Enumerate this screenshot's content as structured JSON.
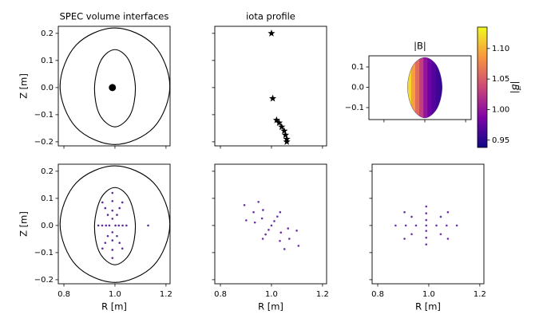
{
  "chart_data": [
    {
      "type": "poincare",
      "title": "SPEC volume interfaces",
      "ylabel": "Z [m]",
      "xlim": [
        0.778,
        1.216
      ],
      "ylim": [
        -0.215,
        0.226
      ],
      "xticks": [
        0.8,
        1.0,
        1.2
      ],
      "show_xtick_labels": false,
      "yticks": [
        0.2,
        0.1,
        {
          "value": 0,
          "label": "0.0"
        },
        {
          "value": -0.1,
          "label": "−0.1"
        },
        {
          "value": -0.2,
          "label": "−0.2"
        }
      ],
      "show_ytick_labels": true,
      "interfaces": [
        {
          "x": [
            1.0,
            1.152,
            1.215,
            1.152,
            1.0,
            0.848,
            0.785,
            0.848
          ],
          "y": [
            0.22,
            0.157,
            0.005,
            -0.147,
            -0.21,
            -0.147,
            0.005,
            0.157
          ]
        },
        {
          "x": [
            1.0,
            1.055,
            1.08,
            1.06,
            1.0,
            0.94,
            0.92,
            0.945
          ],
          "y": [
            0.14,
            0.1,
            0.0,
            -0.1,
            -0.145,
            -0.1,
            0.0,
            0.1
          ]
        }
      ],
      "series": [
        {
          "color": "#000000",
          "marker_size": 4.5,
          "x": [
            0.99
          ],
          "y": [
            0.0
          ]
        }
      ]
    },
    {
      "type": "scatter",
      "title": "iota profile",
      "xlim": [
        0.778,
        1.216
      ],
      "ylim": [
        -0.215,
        0.226
      ],
      "xticks": [
        0.8,
        1.0,
        1.2
      ],
      "show_xtick_labels": false,
      "yticks": [
        0.2,
        0.1,
        0,
        -0.1,
        -0.2
      ],
      "show_ytick_labels": false,
      "color": "#000000",
      "x": [
        1.0,
        1.005,
        1.02,
        1.03,
        1.04,
        1.05,
        1.055,
        1.06,
        1.06
      ],
      "y": [
        0.2,
        -0.04,
        -0.12,
        -0.13,
        -0.145,
        -0.16,
        -0.175,
        -0.19,
        -0.2
      ]
    },
    {
      "type": "surface",
      "title": "|B|",
      "xlim": [
        0.726,
        1.227
      ],
      "ylim": [
        -0.159,
        0.155
      ],
      "xticks": [
        0.8,
        1.0,
        1.2
      ],
      "show_xtick_labels": false,
      "yticks": [
        0.1,
        {
          "value": 0,
          "label": "0.0"
        },
        {
          "value": -0.1,
          "label": "−0.1"
        }
      ],
      "show_ytick_labels": true,
      "boundary": {
        "x": [
          1.0,
          1.06,
          1.085,
          1.06,
          1.0,
          0.94,
          0.915,
          0.94
        ],
        "y": [
          0.147,
          0.104,
          0.0,
          -0.104,
          -0.151,
          -0.104,
          0.0,
          0.104
        ]
      },
      "R": [
        0.925,
        0.945,
        0.965,
        0.985,
        1.005,
        1.025,
        1.045,
        1.065,
        1.085
      ],
      "B": [
        1.12,
        1.09,
        1.06,
        1.03,
        1.0,
        0.98,
        0.97,
        0.96,
        0.955
      ],
      "colorbar": {
        "label": "|B⃗|",
        "lim": [
          0.938,
          1.135
        ],
        "ticks": [
          {
            "value": 1.1,
            "label": "1.10"
          },
          1.05,
          {
            "value": 1,
            "label": "1.00"
          },
          0.95
        ]
      }
    },
    {
      "type": "poincare",
      "ylabel": "Z [m]",
      "xlabel": "R [m]",
      "xlim": [
        0.778,
        1.216
      ],
      "ylim": [
        -0.215,
        0.226
      ],
      "xticks": [
        0.8,
        {
          "value": 1,
          "label": "1.0"
        },
        1.2
      ],
      "show_xtick_labels": true,
      "yticks": [
        0.2,
        0.1,
        {
          "value": 0,
          "label": "0.0"
        },
        {
          "value": -0.1,
          "label": "−0.1"
        },
        {
          "value": -0.2,
          "label": "−0.2"
        }
      ],
      "show_ytick_labels": true,
      "interfaces": [
        {
          "x": [
            1.0,
            1.152,
            1.215,
            1.152,
            1.0,
            0.848,
            0.785,
            0.848
          ],
          "y": [
            0.22,
            0.157,
            0.005,
            -0.147,
            -0.21,
            -0.147,
            0.005,
            0.157
          ]
        },
        {
          "x": [
            1.0,
            1.055,
            1.08,
            1.06,
            1.0,
            0.94,
            0.92,
            0.945
          ],
          "y": [
            0.14,
            0.1,
            0.0,
            -0.1,
            -0.145,
            -0.1,
            0.0,
            0.1
          ]
        }
      ],
      "series": [
        {
          "color": "#5b2c9a",
          "marker_size": 1.3,
          "x": [
            1.045,
            1.029,
            0.99,
            0.951,
            0.935,
            0.951,
            0.99,
            1.029,
            1.03,
            1.018,
            0.99,
            0.962,
            0.95,
            0.962,
            0.99,
            1.018,
            1.015,
            1.008,
            0.99,
            0.972,
            0.965,
            0.972,
            0.99,
            1.008,
            1.002,
            0.99,
            0.978,
            0.99,
            1.13
          ],
          "y": [
            0,
            0.085,
            0.12,
            0.085,
            0,
            -0.085,
            -0.12,
            -0.085,
            0,
            0.064,
            0.09,
            0.064,
            0,
            -0.064,
            -0.09,
            -0.064,
            0,
            0.039,
            0.055,
            0.039,
            0,
            -0.039,
            -0.055,
            -0.039,
            0,
            0.025,
            0,
            -0.025,
            0
          ]
        }
      ]
    },
    {
      "type": "poincare",
      "xlabel": "R [m]",
      "xlim": [
        0.778,
        1.216
      ],
      "ylim": [
        -0.215,
        0.226
      ],
      "xticks": [
        0.8,
        {
          "value": 1,
          "label": "1.0"
        },
        1.2
      ],
      "show_xtick_labels": true,
      "yticks": [
        0.2,
        0.1,
        0,
        -0.1,
        -0.2
      ],
      "show_ytick_labels": false,
      "interfaces": [],
      "series": [
        {
          "color": "#6a34a8",
          "marker_size": 1.3,
          "x": [
            1.106,
            1.099,
            1.034,
            0.949,
            0.894,
            0.901,
            0.966,
            1.051,
            1.07,
            1.065,
            1.023,
            0.967,
            0.93,
            0.935,
            0.977,
            1.033,
            1.037,
            1.011,
            0.963,
            0.989,
            1.0
          ],
          "y": [
            -0.075,
            -0.019,
            0.049,
            0.087,
            0.075,
            0.019,
            -0.049,
            -0.087,
            -0.049,
            -0.011,
            0.033,
            0.057,
            0.049,
            0.011,
            -0.033,
            -0.057,
            -0.026,
            0.016,
            0.026,
            -0.016,
            0
          ]
        }
      ]
    },
    {
      "type": "poincare",
      "xlabel": "R [m]",
      "xlim": [
        0.778,
        1.216
      ],
      "ylim": [
        -0.215,
        0.226
      ],
      "xticks": [
        0.8,
        {
          "value": 1,
          "label": "1.0"
        },
        1.2
      ],
      "show_xtick_labels": true,
      "yticks": [
        0.2,
        0.1,
        0,
        -0.1,
        -0.2
      ],
      "show_ytick_labels": false,
      "interfaces": [],
      "series": [
        {
          "color": "#6a34a8",
          "marker_size": 1.3,
          "x": [
            1.11,
            1.075,
            0.99,
            0.905,
            0.87,
            0.905,
            0.99,
            1.075,
            1.07,
            1.047,
            0.99,
            0.933,
            0.91,
            0.933,
            0.99,
            1.047,
            1.03,
            0.99,
            0.95,
            0.99,
            0.99
          ],
          "y": [
            0,
            0.049,
            0.07,
            0.049,
            0,
            -0.049,
            -0.07,
            -0.049,
            0,
            0.032,
            0.045,
            0.032,
            0,
            -0.032,
            -0.045,
            -0.032,
            0,
            0.02,
            0,
            -0.02,
            0
          ]
        }
      ]
    }
  ]
}
